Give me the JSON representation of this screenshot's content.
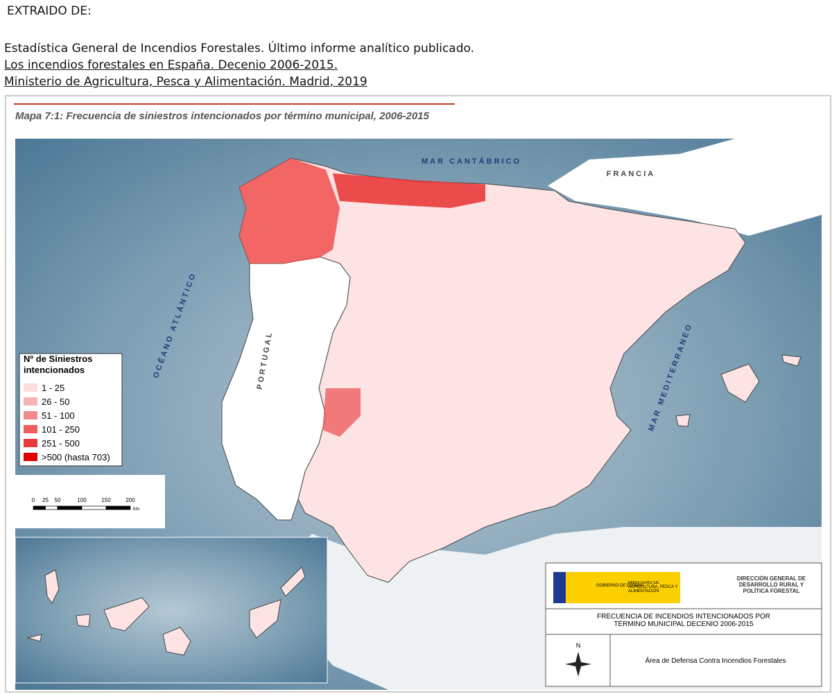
{
  "header": {
    "label": "EXTRAIDO DE:",
    "lines": [
      "Estadística General de Incendios Forestales. Último informe analítico publicado.",
      "Los incendios forestales en España. Decenio 2006-2015. ",
      "Ministerio de Agricultura, Pesca y Alimentación. Madrid, 2019"
    ]
  },
  "map": {
    "title": "Mapa 7:1: Frecuencia de siniestros intencionados por término municipal, 2006-2015",
    "labels": {
      "north_sea": "MAR CANTÁBRICO",
      "france": "FRANCIA",
      "ocean": "OCÉANO ATLÁNTICO",
      "portugal": "PORTUGAL",
      "mediterranean": "MAR MEDITERRANEO"
    },
    "legend": {
      "title": "Nº de Siniestros intencionados",
      "items": [
        {
          "label": "1 - 25",
          "color": "#fcdcdc"
        },
        {
          "label": "26 - 50",
          "color": "#f8b4b4"
        },
        {
          "label": "51 - 100",
          "color": "#f28a8a"
        },
        {
          "label": "101 - 250",
          "color": "#ee5e5e"
        },
        {
          "label": "251 - 500",
          "color": "#e83a3a"
        },
        {
          "label": ">500 (hasta 703)",
          "color": "#e00000"
        }
      ]
    },
    "scale": {
      "ticks": [
        0,
        25,
        50,
        100,
        150,
        200
      ],
      "unit": "km"
    }
  },
  "cartouche": {
    "gov": "GOBIERNO DE ESPAÑA",
    "ministry": "MINISTERIO DE AGRICULTURA, PESCA Y ALIMENTACIÓN",
    "direction": "DIRECCIÓN GENERAL DE DESARROLLO RURAL Y POLÍTICA FORESTAL",
    "title": "FRECUENCIA DE INCENDIOS INTENCIONADOS POR TÉRMINO MUNICIPAL DECENIO 2006-2015",
    "compass": "N",
    "area": "Área de Defensa Contra Incendios Forestales"
  }
}
